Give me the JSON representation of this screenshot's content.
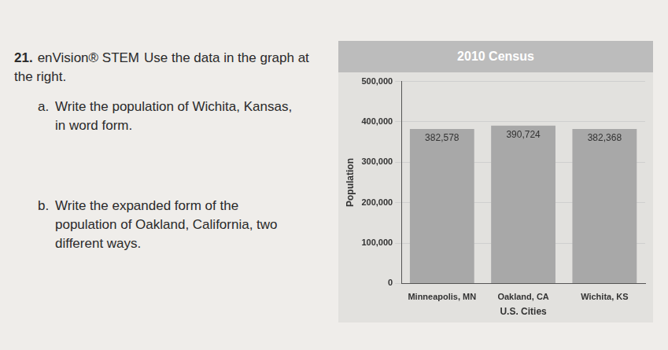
{
  "exercise": {
    "number": "21.",
    "source": "enVision® STEM",
    "text": "Use the data in the graph at the right.",
    "parts": [
      {
        "label": "a.",
        "text": "Write the population of Wichita, Kansas, in word form."
      },
      {
        "label": "b.",
        "text": "Write the expanded form of the population of Oakland, California, two different ways."
      }
    ]
  },
  "chart_data": {
    "type": "bar",
    "title": "2010 Census",
    "x_label": "U.S. Cities",
    "y_label": "Population",
    "categories": [
      "Minneapolis, MN",
      "Oakland, CA",
      "Wichita, KS"
    ],
    "values": [
      382578,
      390724,
      382368
    ],
    "value_labels": [
      "382,578",
      "390,724",
      "382,368"
    ],
    "color": "#a8a8a8",
    "ylim": [
      0,
      500000
    ],
    "yticks": [
      0,
      {
        "value": 100000,
        "label": "100,000"
      },
      {
        "value": 200000,
        "label": "200,000"
      },
      {
        "value": 300000,
        "label": "300,000"
      },
      {
        "value": 400000,
        "label": "400,000"
      },
      {
        "value": 500000,
        "label": "500,000"
      }
    ],
    "grid": true,
    "data_labels": true
  }
}
